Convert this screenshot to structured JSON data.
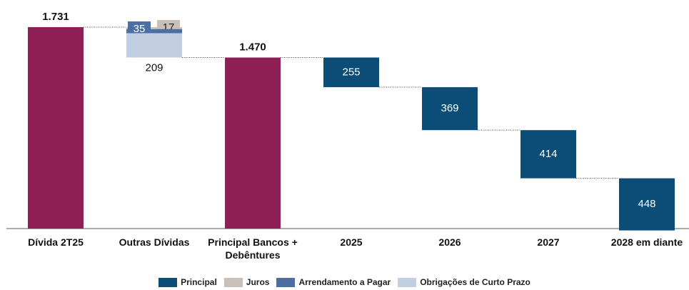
{
  "chart_data": {
    "type": "waterfall",
    "categories": [
      "Dívida 2T25",
      "Outras Dívidas",
      "Principal Bancos + Debêntures",
      "2025",
      "2026",
      "2027",
      "2028 em diante"
    ],
    "totals": {
      "color": "#8e2055",
      "values": [
        1731,
        null,
        1470,
        null,
        null,
        null,
        null
      ],
      "value_labels": [
        "1.731",
        null,
        "1.470",
        null,
        null,
        null,
        null
      ]
    },
    "series": [
      {
        "name": "Principal",
        "color": "#0b4d76",
        "values": [
          null,
          null,
          null,
          255,
          369,
          414,
          448
        ]
      },
      {
        "name": "Juros",
        "color": "#c9c0b9",
        "values": [
          null,
          17,
          null,
          null,
          null,
          null,
          null
        ]
      },
      {
        "name": "Arrendamento a Pagar",
        "color": "#4b6fa3",
        "values": [
          null,
          35,
          null,
          null,
          null,
          null,
          null
        ]
      },
      {
        "name": "Obrigações de Curto Prazo",
        "color": "#c2cee2",
        "values": [
          null,
          209,
          null,
          null,
          null,
          null,
          null
        ]
      }
    ]
  }
}
